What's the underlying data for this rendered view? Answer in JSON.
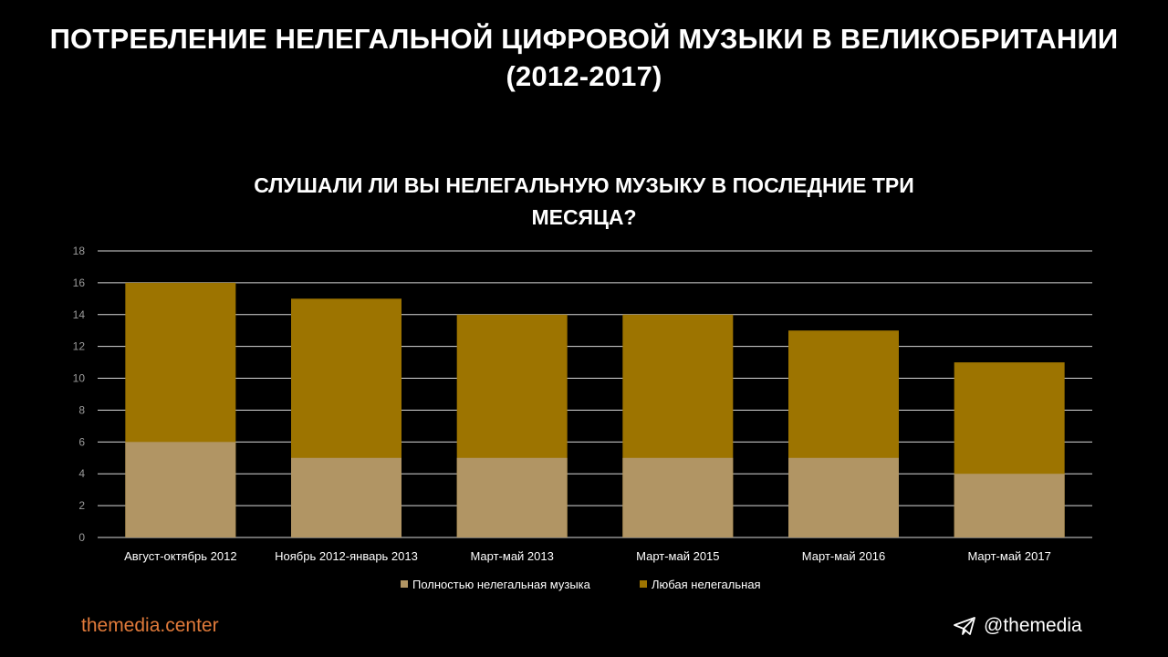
{
  "main_title_line1": "ПОТРЕБЛЕНИЕ НЕЛЕГАЛЬНОЙ ЦИФРОВОЙ МУЗЫКИ В ВЕЛИКОБРИТАНИИ",
  "main_title_line2": "(2012-2017)",
  "chart_data": {
    "type": "bar",
    "title_line1": "СЛУШАЛИ ЛИ ВЫ НЕЛЕГАЛЬНУЮ МУЗЫКУ В ПОСЛЕДНИЕ ТРИ",
    "title_line2": "МЕСЯЦА?",
    "categories": [
      "Август-октябрь 2012",
      "Ноябрь 2012-январь 2013",
      "Март-май 2013",
      "Март-май 2015",
      "Март-май 2016",
      "Март-май 2017"
    ],
    "series": [
      {
        "name": "Полностью нелегальная музыка",
        "values": [
          6,
          5,
          5,
          5,
          5,
          4
        ],
        "color": "#b19564"
      },
      {
        "name": "Любая нелегальная",
        "values": [
          16,
          15,
          14,
          14,
          13,
          11
        ],
        "color": "#9d7400"
      }
    ],
    "overlap": true,
    "ylim": [
      0,
      18
    ],
    "yticks": [
      0,
      2,
      4,
      6,
      8,
      10,
      12,
      14,
      16,
      18
    ],
    "grid": true,
    "legend": "bottom"
  },
  "footer": {
    "site": "themedia.center",
    "handle": "@themedia"
  }
}
